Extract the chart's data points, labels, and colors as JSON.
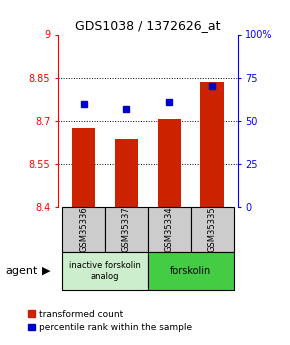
{
  "title": "GDS1038 / 1372626_at",
  "categories": [
    "GSM35336",
    "GSM35337",
    "GSM35334",
    "GSM35335"
  ],
  "bar_values": [
    8.675,
    8.635,
    8.705,
    8.835
  ],
  "dot_values": [
    60,
    57,
    61,
    70
  ],
  "ylim_left": [
    8.4,
    9.0
  ],
  "ylim_right": [
    0,
    100
  ],
  "yticks_left": [
    8.4,
    8.55,
    8.7,
    8.85,
    9.0
  ],
  "yticks_right": [
    0,
    25,
    50,
    75,
    100
  ],
  "ytick_labels_left": [
    "8.4",
    "8.55",
    "8.7",
    "8.85",
    "9"
  ],
  "ytick_labels_right": [
    "0",
    "25",
    "50",
    "75",
    "100%"
  ],
  "bar_color": "#cc2200",
  "dot_color": "#0000cc",
  "group1_label": "inactive forskolin\nanalog",
  "group2_label": "forskolin",
  "group1_indices": [
    0,
    1
  ],
  "group2_indices": [
    2,
    3
  ],
  "group1_bg": "#cceecc",
  "group2_bg": "#44cc44",
  "sample_box_bg": "#cccccc",
  "agent_label": "agent",
  "legend_red": "transformed count",
  "legend_blue": "percentile rank within the sample",
  "background_color": "#ffffff"
}
